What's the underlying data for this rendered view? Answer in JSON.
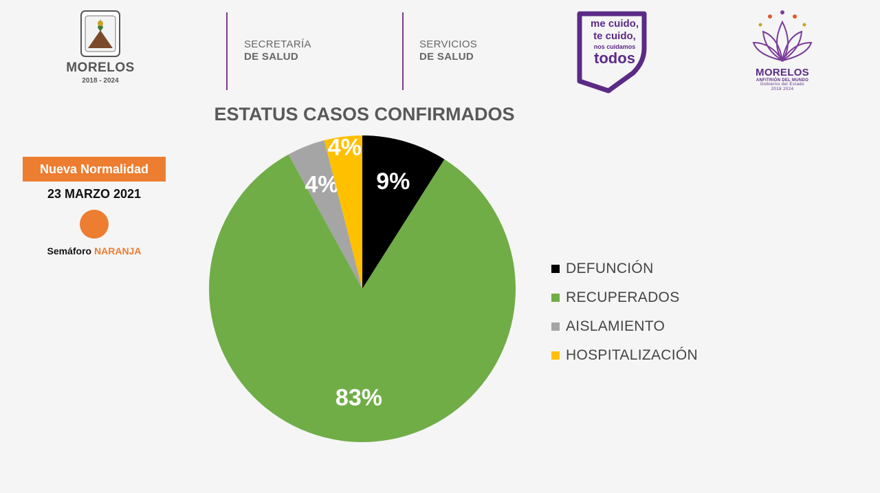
{
  "header": {
    "morelos": {
      "name": "MORELOS",
      "years": "2018 - 2024"
    },
    "secretaria": {
      "line1": "SECRETARÍA",
      "line2": "DE SALUD"
    },
    "servicios": {
      "line1": "SERVICIOS",
      "line2": "DE SALUD"
    },
    "campaign": {
      "line1": "me cuido,",
      "line2": "te cuido,",
      "line3": "nos cuidamos",
      "line4": "todos"
    },
    "lotus": {
      "name": "MORELOS",
      "sub": "ANFITRIÓN DEL MUNDO",
      "gov": "Gobierno del Estado",
      "years": "2018 2024"
    },
    "divider_color": "#7a3b8a",
    "brand_purple": "#5b2a86"
  },
  "status": {
    "badge": "Nueva Normalidad",
    "date": "23 MARZO 2021",
    "semaforo_prefix": "Semáforo ",
    "semaforo_color_name": "NARANJA",
    "semaforo_color": "#ed7d31"
  },
  "chart_data": {
    "type": "pie",
    "title": "ESTATUS CASOS CONFIRMADOS",
    "legend_position": "right",
    "slices": [
      {
        "name": "DEFUNCIÓN",
        "value": 9,
        "label": "9%",
        "color": "#000000",
        "label_color": "#ffffff"
      },
      {
        "name": "RECUPERADOS",
        "value": 83,
        "label": "83%",
        "color": "#70ad47",
        "label_color": "#ffffff"
      },
      {
        "name": "AISLAMIENTO",
        "value": 4,
        "label": "4%",
        "color": "#a5a5a5",
        "label_color": "#ffffff"
      },
      {
        "name": "HOSPITALIZACIÓN",
        "value": 4,
        "label": "4%",
        "color": "#ffc000",
        "label_color": "#ffffff"
      }
    ]
  }
}
